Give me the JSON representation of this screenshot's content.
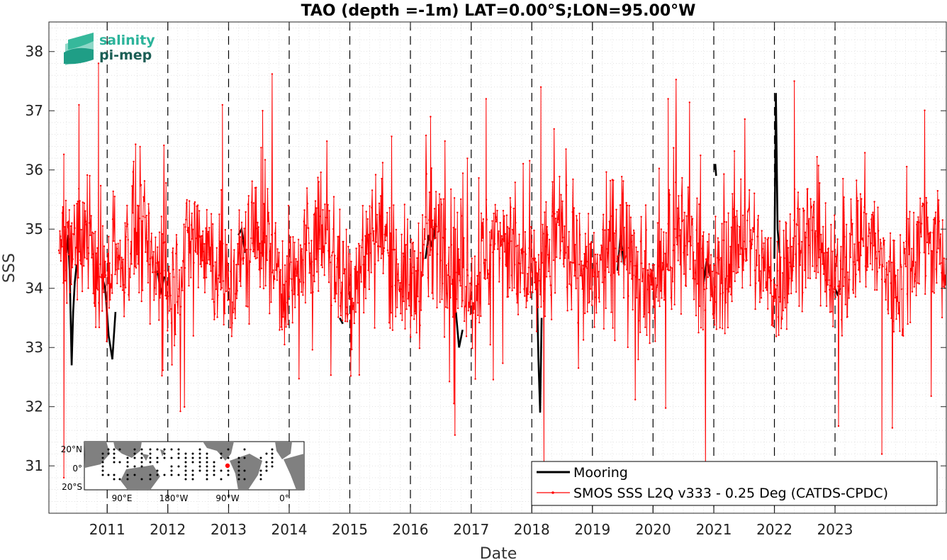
{
  "logo": {
    "line1": "salinity",
    "line2": "pi-mep"
  },
  "chart_data": {
    "type": "line",
    "title": "TAO (depth =-1m) LAT=0.00°S;LON=95.00°W",
    "xlabel": "Date",
    "ylabel": "SSS",
    "x_range": [
      "2010-01-15",
      "2024-11-01"
    ],
    "ylim": [
      30.2,
      38.5
    ],
    "yticks": [
      31,
      32,
      33,
      34,
      35,
      36,
      37,
      38
    ],
    "xticks": [
      "2011",
      "2012",
      "2013",
      "2014",
      "2015",
      "2016",
      "2017",
      "2018",
      "2019",
      "2020",
      "2021",
      "2022",
      "2023"
    ],
    "year_dividers": [
      2011,
      2012,
      2013,
      2014,
      2015,
      2016,
      2017,
      2018,
      2019,
      2020,
      2021,
      2022,
      2023
    ],
    "grid": true,
    "legend_position": "bottom-right",
    "colors": {
      "mooring": "#000000",
      "smos": "#ff0000",
      "map_land": "#808080"
    },
    "series": [
      {
        "name": "Mooring",
        "style": "thick-line",
        "segments": [
          {
            "x": [
              "2010-05-01",
              "2010-05-10",
              "2010-05-20",
              "2010-06-01",
              "2010-06-10",
              "2010-06-20",
              "2010-07-01"
            ],
            "y": [
              34.6,
              34.9,
              34.3,
              32.7,
              33.6,
              34.1,
              34.4
            ]
          },
          {
            "x": [
              "2010-12-01",
              "2010-12-20",
              "2011-01-10",
              "2011-02-01",
              "2011-02-20"
            ],
            "y": [
              34.2,
              34.0,
              33.2,
              32.8,
              33.6
            ]
          },
          {
            "x": [
              "2011-11-01",
              "2011-11-20",
              "2011-12-10"
            ],
            "y": [
              34.3,
              33.9,
              34.2
            ]
          },
          {
            "x": [
              "2013-03-01",
              "2013-03-20",
              "2013-04-10"
            ],
            "y": [
              34.9,
              35.0,
              34.6
            ]
          },
          {
            "x": [
              "2014-11-01",
              "2014-11-20"
            ],
            "y": [
              33.5,
              33.4
            ]
          },
          {
            "x": [
              "2016-04-01",
              "2016-04-20",
              "2016-05-10",
              "2016-06-01"
            ],
            "y": [
              34.5,
              34.9,
              34.7,
              35.1
            ]
          },
          {
            "x": [
              "2016-10-01",
              "2016-10-20",
              "2016-11-10"
            ],
            "y": [
              33.6,
              33.0,
              33.3
            ]
          },
          {
            "x": [
              "2018-02-01",
              "2018-02-10",
              "2018-02-20",
              "2018-03-01"
            ],
            "y": [
              34.0,
              32.8,
              31.9,
              33.5
            ]
          },
          {
            "x": [
              "2019-06-01",
              "2019-06-20",
              "2019-07-10"
            ],
            "y": [
              34.3,
              34.9,
              34.4
            ]
          },
          {
            "x": [
              "2020-11-01",
              "2020-11-20",
              "2020-12-10"
            ],
            "y": [
              34.1,
              34.5,
              34.2
            ]
          },
          {
            "x": [
              "2021-01-05",
              "2021-01-10",
              "2021-01-15"
            ],
            "y": [
              36.0,
              36.1,
              35.9
            ]
          },
          {
            "x": [
              "2022-01-01",
              "2022-01-10",
              "2022-01-20",
              "2022-02-01"
            ],
            "y": [
              34.5,
              37.3,
              35.0,
              34.6
            ]
          },
          {
            "x": [
              "2023-01-01",
              "2023-01-15",
              "2023-02-01"
            ],
            "y": [
              34.0,
              33.9,
              34.0
            ]
          }
        ]
      },
      {
        "name": "SMOS SSS L2Q v333 - 0.25 Deg (CATDS-CPDC)",
        "style": "thin-line-with-dots",
        "summary": {
          "typical_range": [
            33.0,
            36.0
          ],
          "mean": 34.5,
          "min": 30.7,
          "max": 37.8
        },
        "extremes": [
          {
            "x": "2010-04-15",
            "y": 30.8
          },
          {
            "x": "2010-07-15",
            "y": 37.1
          },
          {
            "x": "2010-11-10",
            "y": 37.8
          },
          {
            "x": "2012-11-25",
            "y": 37.1
          },
          {
            "x": "2013-07-25",
            "y": 37.0
          },
          {
            "x": "2016-05-01",
            "y": 36.9
          },
          {
            "x": "2017-04-01",
            "y": 37.2
          },
          {
            "x": "2018-02-25",
            "y": 37.4
          },
          {
            "x": "2018-03-15",
            "y": 30.9
          },
          {
            "x": "2020-04-01",
            "y": 37.2
          },
          {
            "x": "2022-05-01",
            "y": 37.5
          },
          {
            "x": "2023-10-10",
            "y": 31.2
          }
        ]
      }
    ],
    "inset_map": {
      "lat_labels": [
        "20°N",
        "0°",
        "20°S"
      ],
      "lon_labels": [
        "90°E",
        "180°W",
        "90°W",
        "0°"
      ],
      "marker_lat": 0.0,
      "marker_lon": -95.0
    }
  }
}
